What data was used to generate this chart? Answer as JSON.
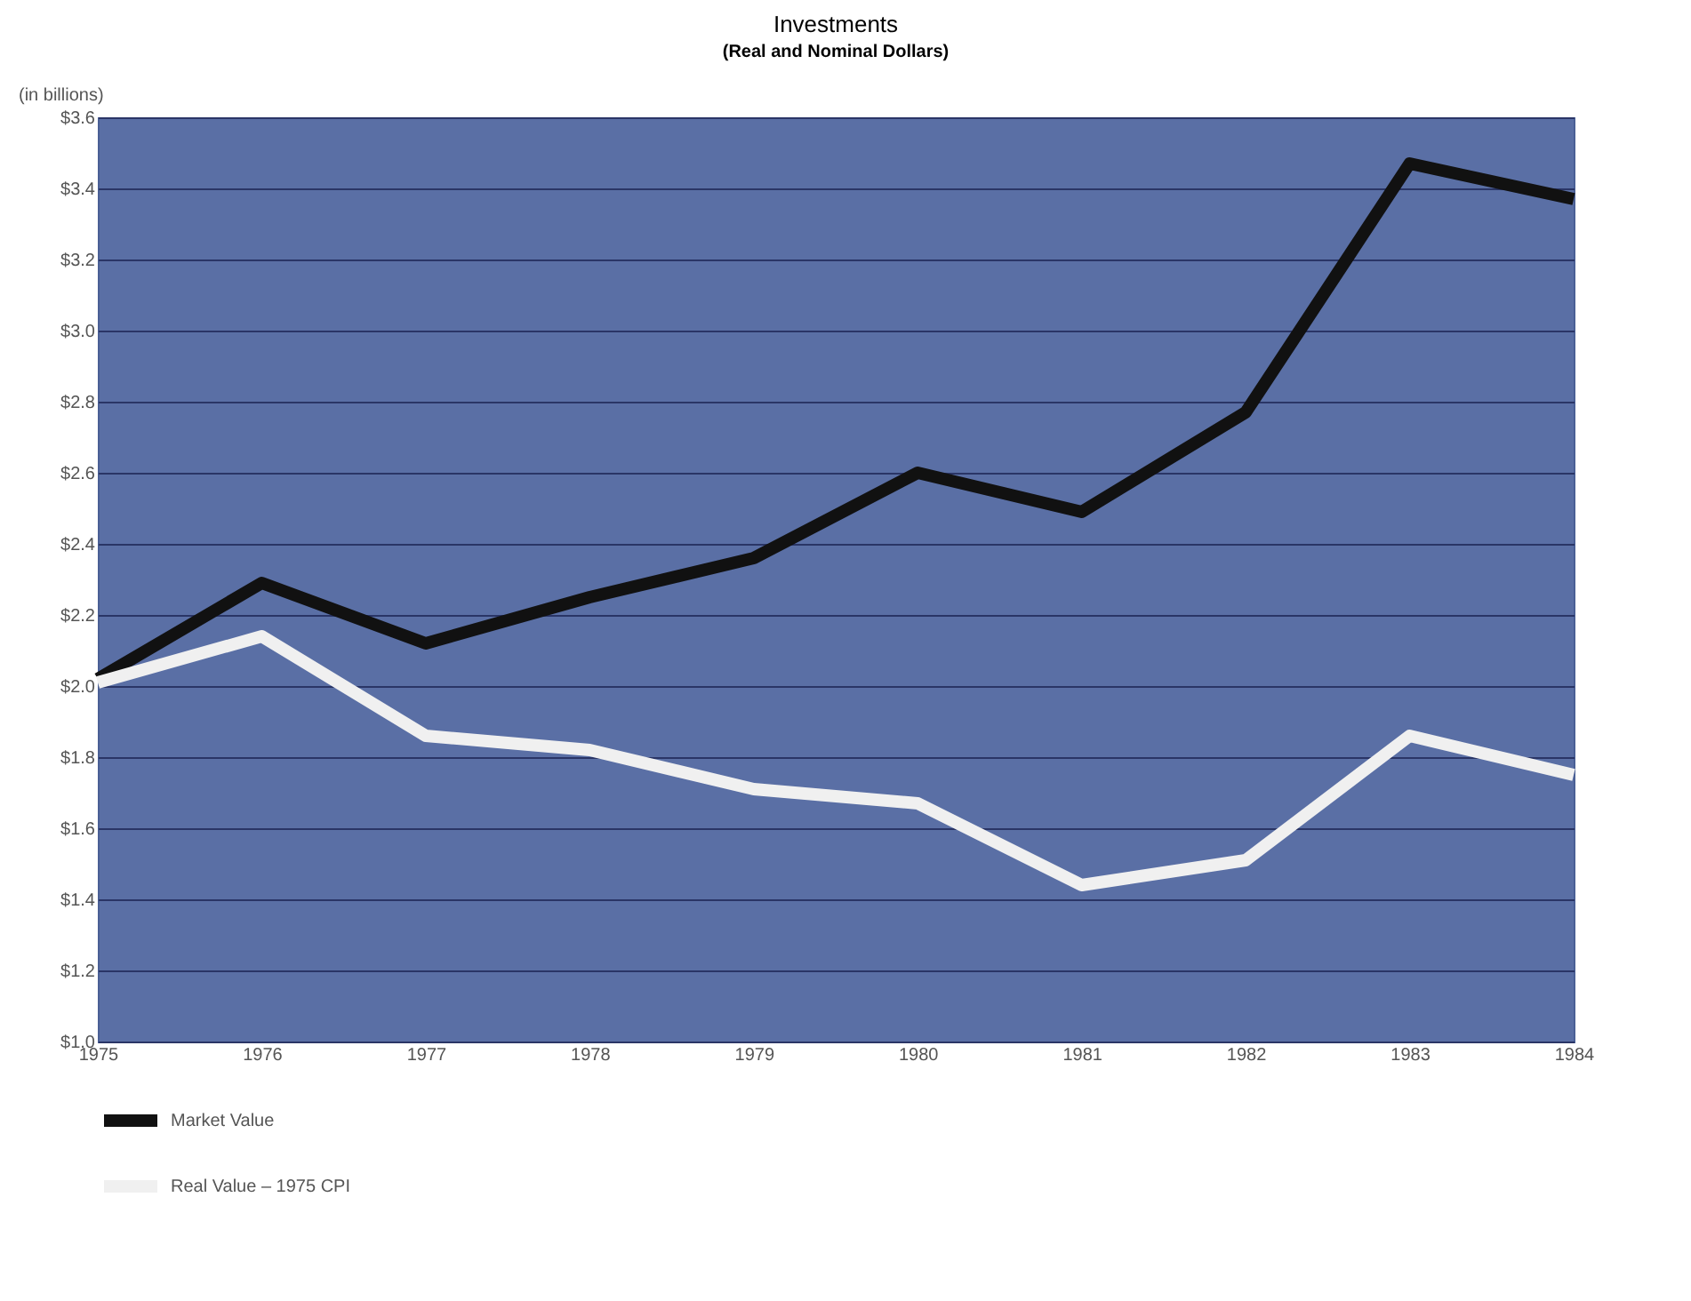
{
  "chart_data": {
    "type": "line",
    "title": "Investments",
    "subtitle": "(Real and Nominal Dollars)",
    "ylabel": "(in billions)",
    "x": [
      1975,
      1976,
      1977,
      1978,
      1979,
      1980,
      1981,
      1982,
      1983,
      1984
    ],
    "series": [
      {
        "name": "Market Value",
        "color": "#111111",
        "values": [
          2.02,
          2.29,
          2.12,
          2.25,
          2.36,
          2.6,
          2.49,
          2.77,
          3.47,
          3.37
        ]
      },
      {
        "name": "Real Value – 1975 CPI",
        "color": "#f0f0f0",
        "values": [
          2.01,
          2.14,
          1.86,
          1.82,
          1.71,
          1.67,
          1.44,
          1.51,
          1.86,
          1.75
        ]
      }
    ],
    "xlim": [
      1975,
      1984
    ],
    "xticks": [
      1975,
      1976,
      1977,
      1978,
      1979,
      1980,
      1981,
      1982,
      1983,
      1984
    ],
    "ylim": [
      1.0,
      3.6
    ],
    "yticks": [
      {
        "value": 1.0,
        "label": "$1.0"
      },
      {
        "value": 1.2,
        "label": "$1.2"
      },
      {
        "value": 1.4,
        "label": "$1.4"
      },
      {
        "value": 1.6,
        "label": "$1.6"
      },
      {
        "value": 1.8,
        "label": "$1.8"
      },
      {
        "value": 2.0,
        "label": "$2.0"
      },
      {
        "value": 2.2,
        "label": "$2.2"
      },
      {
        "value": 2.4,
        "label": "$2.4"
      },
      {
        "value": 2.6,
        "label": "$2.6"
      },
      {
        "value": 2.8,
        "label": "$2.8"
      },
      {
        "value": 3.0,
        "label": "$3.0"
      },
      {
        "value": 3.2,
        "label": "$3.2"
      },
      {
        "value": 3.4,
        "label": "$3.4"
      },
      {
        "value": 3.6,
        "label": "$3.6"
      }
    ],
    "grid": "y",
    "legend": "bottom left",
    "marker": "none",
    "line_style": "solid"
  }
}
